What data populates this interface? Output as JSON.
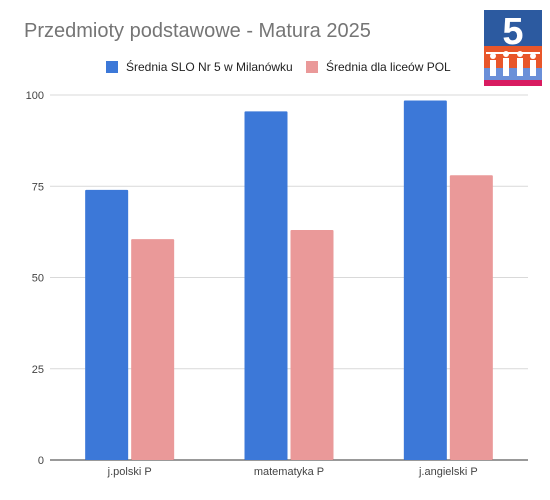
{
  "chart_data": {
    "type": "bar",
    "title": "Przedmioty podstawowe - Matura 2025",
    "categories": [
      "j.polski P",
      "matematyka P",
      "j.angielski P"
    ],
    "series": [
      {
        "name": "Średnia SLO Nr 5 w Milanówku",
        "values": [
          74,
          95.5,
          98.5
        ],
        "color": "#3c78d8"
      },
      {
        "name": "Średnia dla liceów POL",
        "values": [
          60.5,
          63,
          78
        ],
        "color": "#ea9999"
      }
    ],
    "ylim": [
      0,
      100
    ],
    "yticks": [
      0,
      25,
      50,
      75,
      100
    ],
    "grid": true,
    "legend_position": "top",
    "logo": {
      "text": "5",
      "colors": [
        "#2c5aa0",
        "#e8562a",
        "#ffffff"
      ]
    }
  }
}
